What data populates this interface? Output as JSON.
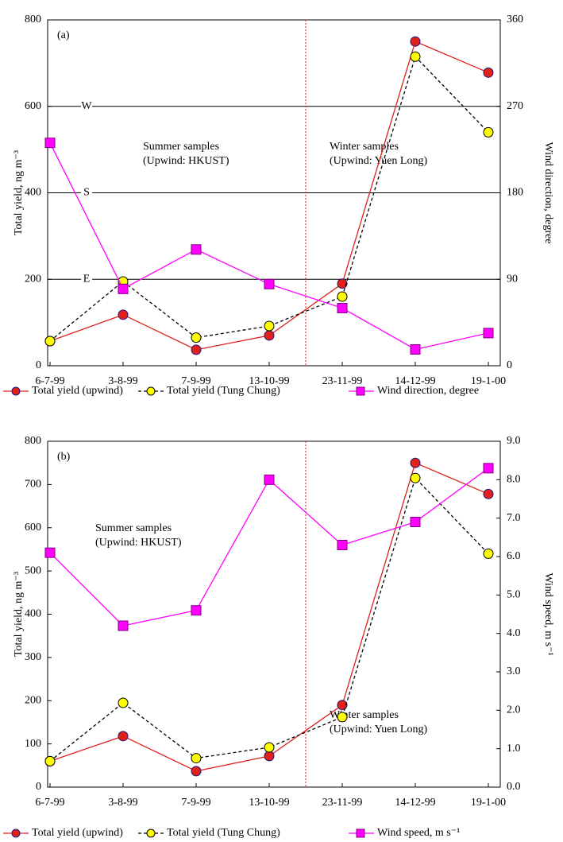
{
  "chart_data": [
    {
      "type": "line",
      "panel_label": "(a)",
      "categories": [
        "6-7-99",
        "3-8-99",
        "7-9-99",
        "13-10-99",
        "23-11-99",
        "14-12-99",
        "19-1-00"
      ],
      "ylabel": "Total yield, ng m⁻³",
      "y2label": "Wind direction, degree",
      "ylim": [
        0,
        800
      ],
      "yticks": [
        0,
        200,
        400,
        600,
        800
      ],
      "y2lim": [
        0,
        360
      ],
      "y2ticks": [
        0,
        90,
        180,
        270,
        360
      ],
      "reference_lines": [
        {
          "value": 200,
          "label": "E"
        },
        {
          "value": 400,
          "label": "S"
        },
        {
          "value": 600,
          "label": "W"
        }
      ],
      "annotations": [
        [
          "Summer samples",
          "(Upwind: HKUST)"
        ],
        [
          "Winter samples",
          "(Upwind: Yuen Long)"
        ]
      ],
      "series": [
        {
          "name": "Total yield (upwind)",
          "color": "#e0201b",
          "marker": "circle",
          "marker_fill": "#e0201b",
          "marker_edge": "#1a1a80",
          "dash": false,
          "values": [
            57,
            118,
            37,
            70,
            190,
            750,
            678
          ]
        },
        {
          "name": "Total yield (Tung Chung)",
          "color": "#000000",
          "marker": "circle",
          "marker_fill": "#ffff00",
          "marker_edge": "#000000",
          "dash": true,
          "values": [
            57,
            195,
            65,
            92,
            160,
            715,
            540
          ]
        },
        {
          "name": "Wind direction, degree",
          "color": "#ff00ff",
          "marker": "square",
          "marker_fill": "#ff00ff",
          "marker_edge": "#800080",
          "dash": false,
          "axis": "y2",
          "values": [
            232,
            80,
            121,
            85,
            60,
            17,
            34
          ]
        }
      ]
    },
    {
      "type": "line",
      "panel_label": "(b)",
      "categories": [
        "6-7-99",
        "3-8-99",
        "7-9-99",
        "13-10-99",
        "23-11-99",
        "14-12-99",
        "19-1-00"
      ],
      "ylabel": "Total yield, ng m⁻³",
      "y2label": "Wind speed, m s⁻¹",
      "ylim": [
        0,
        800
      ],
      "yticks": [
        0,
        100,
        200,
        300,
        400,
        500,
        600,
        700,
        800
      ],
      "y2lim": [
        0,
        9
      ],
      "y2ticks": [
        {
          "value": 0,
          "label": "0.0"
        },
        {
          "value": 1,
          "label": "1.0"
        },
        {
          "value": 2,
          "label": "2.0"
        },
        {
          "value": 3,
          "label": "3.0"
        },
        {
          "value": 4,
          "label": "4.0"
        },
        {
          "value": 5,
          "label": "5.0"
        },
        {
          "value": 6,
          "label": "6.0"
        },
        {
          "value": 7,
          "label": "7.0"
        },
        {
          "value": 8,
          "label": "8.0"
        },
        {
          "value": 9,
          "label": "9.0"
        }
      ],
      "reference_lines": [],
      "annotations": [
        [
          "Summer samples",
          "(Upwind: HKUST)"
        ],
        [
          "Winter samples",
          "(Upwind: Yuen Long)"
        ]
      ],
      "series": [
        {
          "name": "Total yield (upwind)",
          "color": "#e0201b",
          "marker": "circle",
          "marker_fill": "#e0201b",
          "marker_edge": "#1a1a80",
          "dash": false,
          "values": [
            60,
            118,
            37,
            72,
            190,
            750,
            678
          ]
        },
        {
          "name": "Total yield (Tung Chung)",
          "color": "#000000",
          "marker": "circle",
          "marker_fill": "#ffff00",
          "marker_edge": "#000000",
          "dash": true,
          "values": [
            60,
            195,
            67,
            92,
            162,
            715,
            540
          ]
        },
        {
          "name": "Wind speed, m s⁻¹",
          "color": "#ff00ff",
          "marker": "square",
          "marker_fill": "#ff00ff",
          "marker_edge": "#800080",
          "dash": false,
          "axis": "y2",
          "values": [
            6.1,
            4.2,
            4.6,
            8.0,
            6.3,
            6.9,
            8.3
          ]
        }
      ]
    }
  ]
}
